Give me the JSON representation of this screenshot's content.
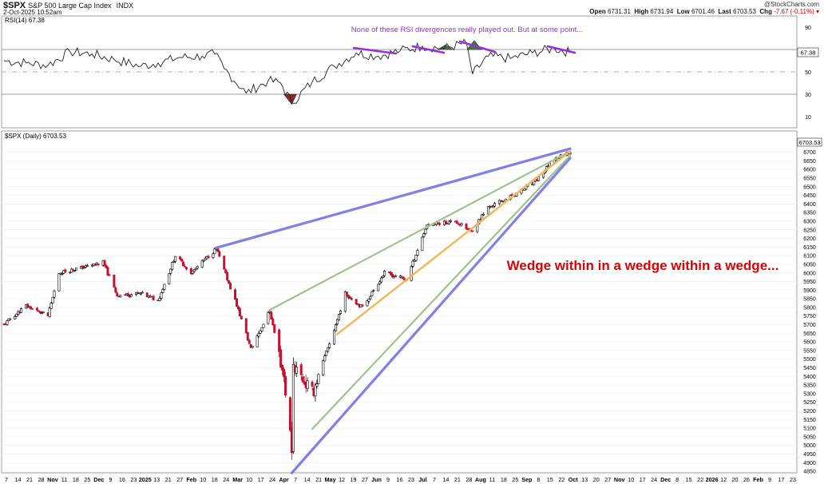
{
  "header": {
    "symbol": "$SPX",
    "name": "S&P 500 Large Cap Index",
    "exchange": "INDX",
    "datetime": "2-Oct-2025 10:52am",
    "brand": "@StockCharts.com",
    "open_label": "Open",
    "open": "6731.31",
    "high_label": "High",
    "high": "6731.94",
    "low_label": "Low",
    "low": "6701.46",
    "last_label": "Last",
    "last": "6703.53",
    "chg_label": "Chg",
    "chg": "-7.67 (-0.11%)"
  },
  "rsi_panel": {
    "legend": "RSI(14) 67.38",
    "annotation": "None of these RSI divergences really played out. But at some point...",
    "last_value_badge": "67.38",
    "y_ticks": [
      "90",
      "70",
      "50",
      "30",
      "10"
    ]
  },
  "price_panel": {
    "legend": "$SPX (Daily) 6703.53",
    "last_badge": "6703.53",
    "annotation": "Wedge within in a wedge within a wedge...",
    "y_ticks": [
      "6700",
      "6650",
      "6600",
      "6550",
      "6500",
      "6450",
      "6400",
      "6350",
      "6300",
      "6250",
      "6200",
      "6150",
      "6100",
      "6050",
      "6000",
      "5950",
      "5900",
      "5850",
      "5800",
      "5750",
      "5700",
      "5650",
      "5600",
      "5550",
      "5500",
      "5450",
      "5400",
      "5350",
      "5300",
      "5250",
      "5200",
      "5150",
      "5100",
      "5050",
      "5000",
      "4950",
      "4900",
      "4850"
    ],
    "x_labels": [
      "7",
      "14",
      "21",
      "28",
      "Nov",
      "11",
      "18",
      "25",
      "Dec",
      "9",
      "16",
      "23",
      "2025",
      "13",
      "21",
      "27",
      "Feb",
      "10",
      "18",
      "24",
      "Mar",
      "10",
      "17",
      "24",
      "Apr",
      "7",
      "14",
      "21",
      "May",
      "12",
      "19",
      "27",
      "Jun",
      "9",
      "16",
      "23",
      "Jul",
      "7",
      "14",
      "21",
      "28",
      "Aug",
      "11",
      "18",
      "25",
      "Sep",
      "8",
      "15",
      "22",
      "Oct",
      "13",
      "20",
      "27",
      "Nov",
      "10",
      "17",
      "24",
      "Dec",
      "8",
      "15",
      "22",
      "2026",
      "12",
      "20",
      "26",
      "Feb",
      "9",
      "17",
      "23"
    ]
  },
  "colors": {
    "blue_wedge": "#8080e8",
    "green_wedge": "#9cc48c",
    "orange_wedge": "#f4b459",
    "rsi_divergence": "#9a2fd6",
    "up_candle": "#000000",
    "down_candle": "#c8102e",
    "annotation_red": "#e00000",
    "annotation_purple": "#9a2fd6"
  },
  "chart_data": [
    {
      "type": "line",
      "title": "RSI(14)",
      "ylim": [
        0,
        100
      ],
      "reference_lines": [
        70,
        50,
        30
      ],
      "x": [
        "2024-10-07",
        "2024-10-21",
        "2024-11-04",
        "2024-11-18",
        "2024-12-02",
        "2024-12-16",
        "2025-01-02",
        "2025-01-13",
        "2025-01-27",
        "2025-02-10",
        "2025-02-18",
        "2025-02-24",
        "2025-03-10",
        "2025-03-24",
        "2025-04-01",
        "2025-04-08",
        "2025-04-21",
        "2025-05-05",
        "2025-05-19",
        "2025-06-02",
        "2025-06-16",
        "2025-06-30",
        "2025-07-14",
        "2025-07-28",
        "2025-08-01",
        "2025-08-11",
        "2025-08-25",
        "2025-09-08",
        "2025-09-22",
        "2025-10-02"
      ],
      "series": [
        {
          "name": "RSI(14)",
          "values": [
            60,
            58,
            56,
            68,
            66,
            61,
            55,
            58,
            63,
            64,
            66,
            53,
            31,
            42,
            40,
            22,
            41,
            55,
            67,
            64,
            69,
            73,
            71,
            76,
            48,
            64,
            62,
            67,
            71,
            67.38
          ]
        }
      ]
    },
    {
      "type": "candlestick",
      "title": "$SPX (Daily)",
      "ylim": [
        4825,
        6725
      ],
      "series": [
        {
          "name": "$SPX",
          "x": [
            "2024-10-07",
            "2024-10-21",
            "2024-11-04",
            "2024-11-11",
            "2024-11-25",
            "2024-12-09",
            "2024-12-18",
            "2025-01-02",
            "2025-01-13",
            "2025-01-24",
            "2025-02-03",
            "2025-02-19",
            "2025-03-03",
            "2025-03-13",
            "2025-03-25",
            "2025-04-03",
            "2025-04-08",
            "2025-04-09",
            "2025-04-21",
            "2025-05-05",
            "2025-05-12",
            "2025-05-23",
            "2025-06-06",
            "2025-06-20",
            "2025-07-03",
            "2025-07-21",
            "2025-07-31",
            "2025-08-11",
            "2025-08-29",
            "2025-09-10",
            "2025-09-22",
            "2025-10-02"
          ],
          "values": [
            5700,
            5810,
            5750,
            6000,
            6030,
            6060,
            5870,
            5880,
            5840,
            6100,
            6000,
            6140,
            5840,
            5560,
            5780,
            5400,
            4980,
            5470,
            5300,
            5670,
            5880,
            5800,
            6000,
            5960,
            6280,
            6300,
            6240,
            6380,
            6460,
            6530,
            6660,
            6703.53
          ]
        }
      ]
    }
  ]
}
